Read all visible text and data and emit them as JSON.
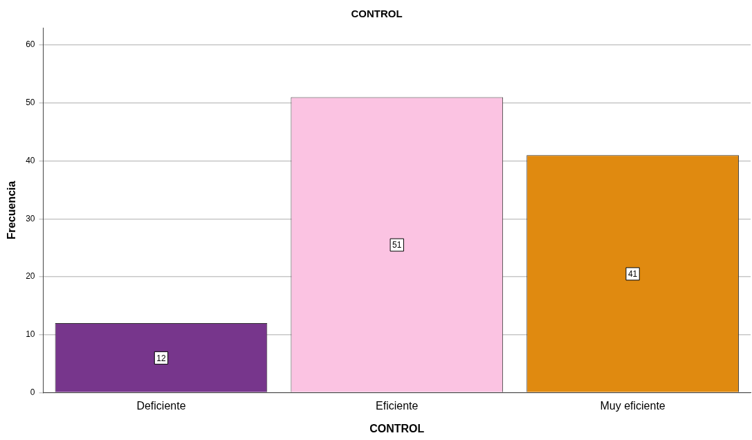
{
  "chart_data": {
    "type": "bar",
    "title": "CONTROL",
    "xlabel": "CONTROL",
    "ylabel": "Frecuencia",
    "categories": [
      "Deficiente",
      "Eficiente",
      "Muy eficiente"
    ],
    "values": [
      12,
      51,
      41
    ],
    "colors": [
      "#77368c",
      "#fbc3e2",
      "#e08a10"
    ],
    "ylim": [
      0,
      63
    ],
    "yticks": [
      0,
      10,
      20,
      30,
      40,
      50,
      60
    ],
    "grid": "y",
    "data_labels": true
  }
}
